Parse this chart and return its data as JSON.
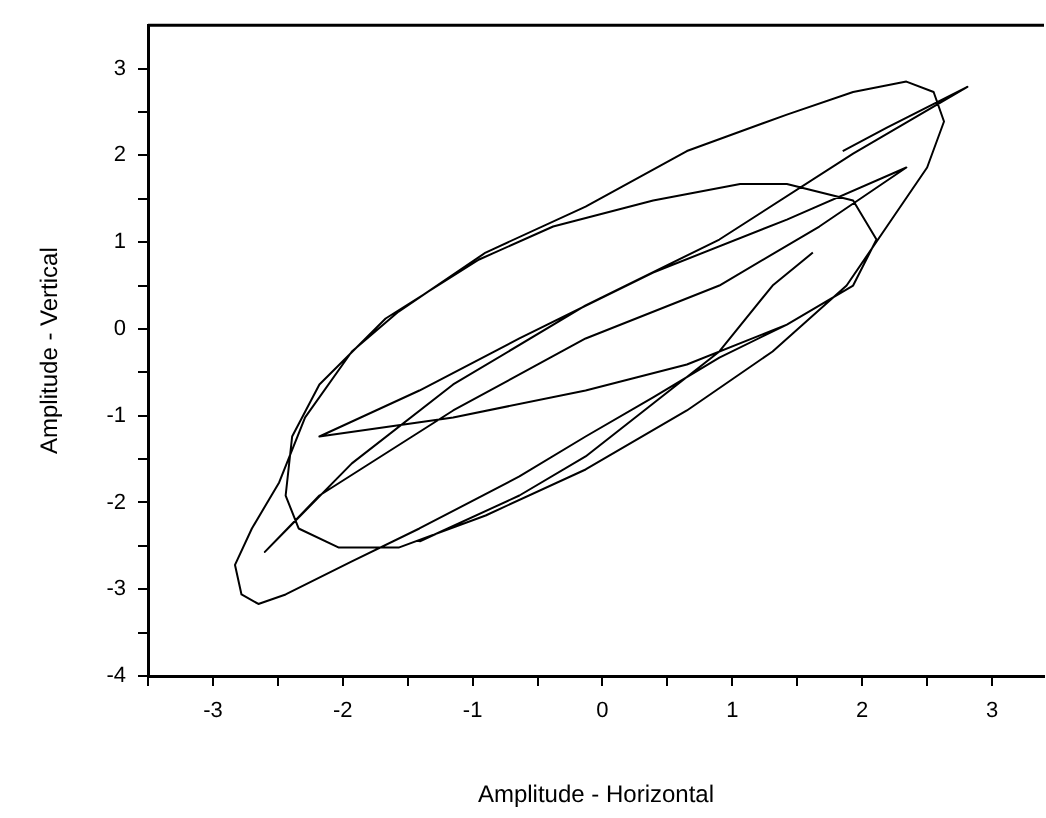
{
  "chart_data": {
    "type": "line",
    "xlabel": "Amplitude - Horizontal",
    "ylabel": "Amplitude - Vertical",
    "xlim": [
      -3.5,
      3.4
    ],
    "ylim": [
      -4,
      3.5
    ],
    "xticks": [
      {
        "value": -3.5,
        "label": null
      },
      -3,
      {
        "value": -2.5,
        "label": null
      },
      -2,
      {
        "value": -1.5,
        "label": null
      },
      -1,
      {
        "value": -0.5,
        "label": null
      },
      0,
      {
        "value": 0.5,
        "label": null
      },
      1,
      {
        "value": 1.5,
        "label": null
      },
      2,
      {
        "value": 2.5,
        "label": null
      },
      3
    ],
    "yticks": [
      -4,
      {
        "value": -3.5,
        "label": null
      },
      -3,
      {
        "value": -2.5,
        "label": null
      },
      -2,
      {
        "value": -1.5,
        "label": null
      },
      -1,
      {
        "value": -0.5,
        "label": null
      },
      0,
      {
        "value": 0.5,
        "label": null
      },
      1,
      {
        "value": 1.5,
        "label": null
      },
      2,
      {
        "value": 2.5,
        "label": null
      },
      3
    ],
    "grid": false,
    "legend": false,
    "marker": "none",
    "line_style": "solid",
    "series": [
      {
        "color": "#000000",
        "x": [
          1.85,
          2.19,
          2.81,
          1.93,
          0.9,
          -0.13,
          -1.15,
          -1.93,
          -2.6,
          -2.18,
          -1.15,
          -0.13,
          0.9,
          1.67,
          2.34,
          1.42,
          0.39,
          -0.64,
          -1.41,
          -2.18,
          -1.15,
          -0.13,
          0.65,
          1.42,
          1.93,
          2.11,
          1.93,
          1.42,
          1.06,
          0.39,
          -0.38,
          -0.95,
          -1.67,
          -2.18,
          -2.39,
          -2.44,
          -2.34,
          -2.03,
          -1.57,
          -0.9,
          -0.13,
          0.65,
          1.31,
          1.88,
          2.19,
          2.5,
          2.63,
          2.55,
          2.34,
          1.93,
          1.42,
          0.65,
          -0.13,
          -0.9,
          -1.57,
          -1.93,
          -2.29,
          -2.49,
          -2.7,
          -2.83,
          -2.78,
          -2.65,
          -2.44,
          -1.93,
          -1.41,
          -0.64,
          -0.13,
          0.39,
          0.9,
          1.42,
          1.5,
          1.62,
          1.31,
          0.9,
          0.39,
          -0.13,
          -0.64,
          -1.41
        ],
        "values": [
          2.05,
          2.32,
          2.79,
          2.02,
          1.03,
          0.27,
          -0.64,
          -1.55,
          -2.57,
          -1.92,
          -0.94,
          -0.11,
          0.5,
          1.18,
          1.86,
          1.26,
          0.65,
          -0.11,
          -0.71,
          -1.24,
          -1.02,
          -0.71,
          -0.41,
          0.05,
          0.5,
          1.03,
          1.48,
          1.67,
          1.67,
          1.48,
          1.18,
          0.8,
          0.12,
          -0.64,
          -1.24,
          -1.92,
          -2.3,
          -2.52,
          -2.52,
          -2.15,
          -1.62,
          -0.94,
          -0.26,
          0.5,
          1.18,
          1.86,
          2.39,
          2.73,
          2.85,
          2.73,
          2.47,
          2.05,
          1.41,
          0.88,
          0.2,
          -0.26,
          -1.02,
          -1.77,
          -2.3,
          -2.72,
          -3.06,
          -3.17,
          -3.06,
          -2.68,
          -2.3,
          -1.7,
          -1.24,
          -0.79,
          -0.33,
          0.05,
          null,
          0.88,
          0.5,
          -0.26,
          -0.86,
          -1.47,
          -1.92,
          -2.45
        ]
      }
    ]
  }
}
